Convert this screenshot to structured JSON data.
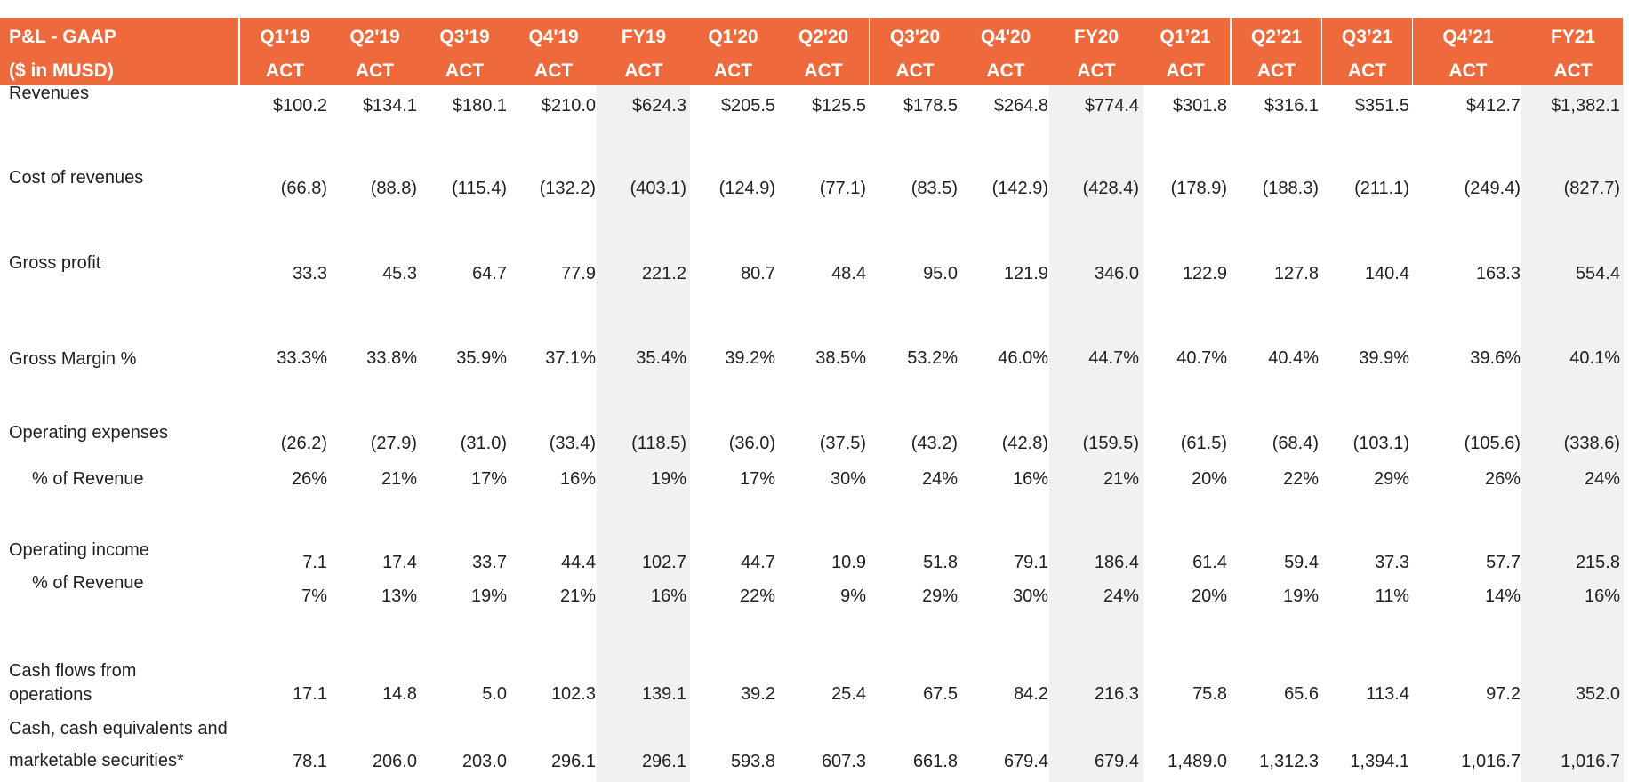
{
  "table": {
    "header_title": "P&L - GAAP",
    "header_subtitle": "($ in MUSD)",
    "columns": [
      {
        "period": "Q1'19",
        "type": "ACT"
      },
      {
        "period": "Q2'19",
        "type": "ACT"
      },
      {
        "period": "Q3'19",
        "type": "ACT"
      },
      {
        "period": "Q4'19",
        "type": "ACT"
      },
      {
        "period": "FY19",
        "type": "ACT"
      },
      {
        "period": "Q1'20",
        "type": "ACT"
      },
      {
        "period": "Q2'20",
        "type": "ACT"
      },
      {
        "period": "Q3'20",
        "type": "ACT"
      },
      {
        "period": "Q4'20",
        "type": "ACT"
      },
      {
        "period": "FY20",
        "type": "ACT"
      },
      {
        "period": "Q1’21",
        "type": "ACT"
      },
      {
        "period": "Q2’21",
        "type": "ACT"
      },
      {
        "period": "Q3’21",
        "type": "ACT"
      },
      {
        "period": "Q4’21",
        "type": "ACT"
      },
      {
        "period": "FY21",
        "type": "ACT"
      }
    ],
    "rows": [
      {
        "label": "Revenues",
        "values": [
          "$100.2",
          "$134.1",
          "$180.1",
          "$210.0",
          "$624.3",
          "$205.5",
          "$125.5",
          "$178.5",
          "$264.8",
          "$774.4",
          "$301.8",
          "$316.1",
          "$351.5",
          "$412.7",
          "$1,382.1"
        ]
      },
      {
        "label": "Cost of revenues",
        "values": [
          "(66.8)",
          "(88.8)",
          "(115.4)",
          "(132.2)",
          "(403.1)",
          "(124.9)",
          "(77.1)",
          "(83.5)",
          "(142.9)",
          "(428.4)",
          "(178.9)",
          "(188.3)",
          "(211.1)",
          "(249.4)",
          "(827.7)"
        ]
      },
      {
        "label": "Gross profit",
        "values": [
          "33.3",
          "45.3",
          "64.7",
          "77.9",
          "221.2",
          "80.7",
          "48.4",
          "95.0",
          "121.9",
          "346.0",
          "122.9",
          "127.8",
          "140.4",
          "163.3",
          "554.4"
        ]
      },
      {
        "label": "Gross Margin %",
        "values": [
          "33.3%",
          "33.8%",
          "35.9%",
          "37.1%",
          "35.4%",
          "39.2%",
          "38.5%",
          "53.2%",
          "46.0%",
          "44.7%",
          "40.7%",
          "40.4%",
          "39.9%",
          "39.6%",
          "40.1%"
        ]
      },
      {
        "label": "Operating expenses",
        "values": [
          "(26.2)",
          "(27.9)",
          "(31.0)",
          "(33.4)",
          "(118.5)",
          "(36.0)",
          "(37.5)",
          "(43.2)",
          "(42.8)",
          "(159.5)",
          "(61.5)",
          "(68.4)",
          "(103.1)",
          "(105.6)",
          "(338.6)"
        ]
      },
      {
        "label": "% of Revenue",
        "values": [
          "26%",
          "21%",
          "17%",
          "16%",
          "19%",
          "17%",
          "30%",
          "24%",
          "16%",
          "21%",
          "20%",
          "22%",
          "29%",
          "26%",
          "24%"
        ]
      },
      {
        "label": "Operating income",
        "values": [
          "7.1",
          "17.4",
          "33.7",
          "44.4",
          "102.7",
          "44.7",
          "10.9",
          "51.8",
          "79.1",
          "186.4",
          "61.4",
          "59.4",
          "37.3",
          "57.7",
          "215.8"
        ]
      },
      {
        "label": "% of Revenue",
        "values": [
          "7%",
          "13%",
          "19%",
          "21%",
          "16%",
          "22%",
          "9%",
          "29%",
          "30%",
          "24%",
          "20%",
          "19%",
          "11%",
          "14%",
          "16%"
        ]
      },
      {
        "label": "Cash flows from operations",
        "values": [
          "17.1",
          "14.8",
          "5.0",
          "102.3",
          "139.1",
          "39.2",
          "25.4",
          "67.5",
          "84.2",
          "216.3",
          "75.8",
          "65.6",
          "113.4",
          "97.2",
          "352.0"
        ]
      },
      {
        "label": "Cash, cash equivalents and marketable securities*",
        "values": [
          "78.1",
          "206.0",
          "203.0",
          "296.1",
          "296.1",
          "593.8",
          "607.3",
          "661.8",
          "679.4",
          "679.4",
          "1,489.0",
          "1,312.3",
          "1,394.1",
          "1,016.7",
          "1,016.7"
        ]
      }
    ]
  },
  "colors": {
    "header_bg": "#ee6a3d",
    "header_text": "#ffffff",
    "fy_shade": "#f1f1f1"
  }
}
